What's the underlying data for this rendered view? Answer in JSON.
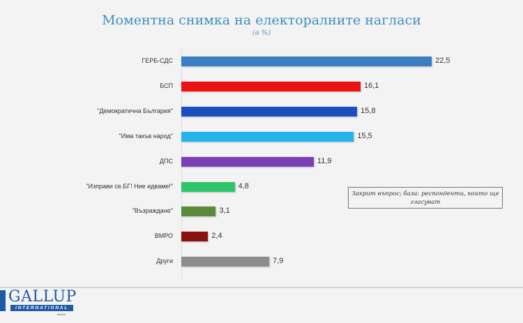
{
  "header": {
    "title": "Моментна снимка на електоралните нагласи",
    "subtitle": "(в %)"
  },
  "note": "Закрит въпрос; база: респонденти, които ще гласуват",
  "logo": {
    "name": "GALLUP",
    "sub": "INTERNATIONAL",
    "region": "Balkan"
  },
  "chart_data": {
    "type": "bar",
    "orientation": "horizontal",
    "title": "Моментна снимка на електоралните нагласи",
    "subtitle": "(в %)",
    "xlabel": "",
    "ylabel": "",
    "categories": [
      "ГЕРБ-СДС",
      "БСП",
      "\"Демократична България\"",
      "\"Има такъв народ\"",
      "ДПС",
      "\"Изправи се.БГ! Ние идваме!\"",
      "\"Възраждане\"",
      "ВМРО",
      "Други"
    ],
    "values": [
      22.5,
      16.1,
      15.8,
      15.5,
      11.9,
      4.8,
      3.1,
      2.4,
      7.9
    ],
    "value_labels": [
      "22,5",
      "16,1",
      "15,8",
      "15,5",
      "11,9",
      "4,8",
      "3,1",
      "2,4",
      "7,9"
    ],
    "colors": [
      "#3a7fc4",
      "#ee1111",
      "#1a4fbf",
      "#22b4ea",
      "#7b3fb5",
      "#2ec46a",
      "#5a8a3a",
      "#8b1010",
      "#8c8c8c"
    ],
    "grid": false,
    "legend": "none"
  }
}
